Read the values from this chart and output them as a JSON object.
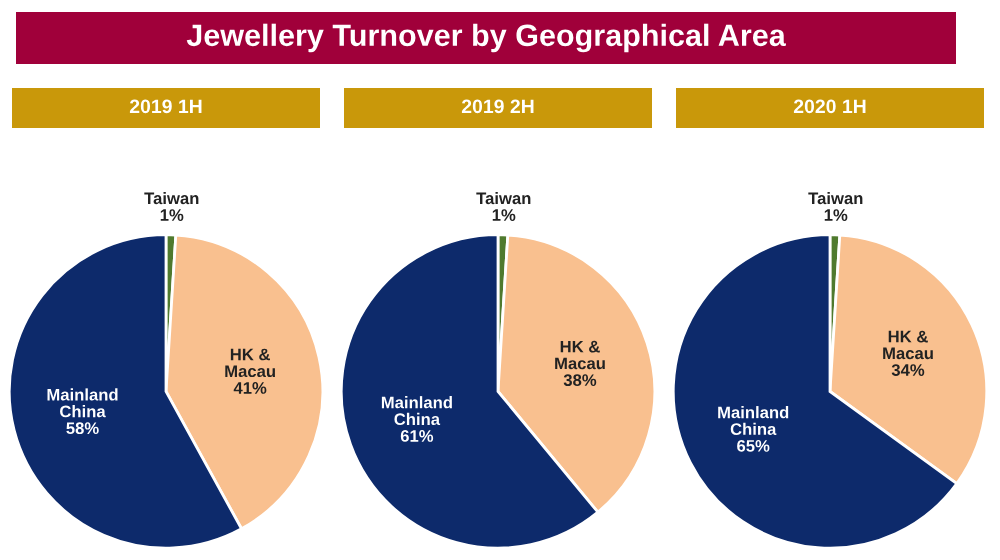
{
  "chart_data": [
    {
      "type": "other",
      "title": "Jewellery Turnover by Geographical Area"
    },
    {
      "type": "pie",
      "title": "2019 1H",
      "categories": [
        "Taiwan",
        "HK &\nMacau",
        "Mainland\nChina"
      ],
      "values": [
        1,
        41,
        58
      ],
      "value_labels": [
        "1%",
        "41%",
        "58%"
      ],
      "colors": [
        "#4f7a2e",
        "#f9c08f",
        "#0d2a6b"
      ]
    },
    {
      "type": "pie",
      "title": "2019 2H",
      "categories": [
        "Taiwan",
        "HK &\nMacau",
        "Mainland\nChina"
      ],
      "values": [
        1,
        38,
        61
      ],
      "value_labels": [
        "1%",
        "38%",
        "61%"
      ],
      "colors": [
        "#4f7a2e",
        "#f9c08f",
        "#0d2a6b"
      ]
    },
    {
      "type": "pie",
      "title": "2020 1H",
      "categories": [
        "Taiwan",
        "HK &\nMacau",
        "Mainland\nChina"
      ],
      "values": [
        1,
        34,
        65
      ],
      "value_labels": [
        "1%",
        "34%",
        "65%"
      ],
      "colors": [
        "#4f7a2e",
        "#f9c08f",
        "#0d2a6b"
      ]
    }
  ]
}
